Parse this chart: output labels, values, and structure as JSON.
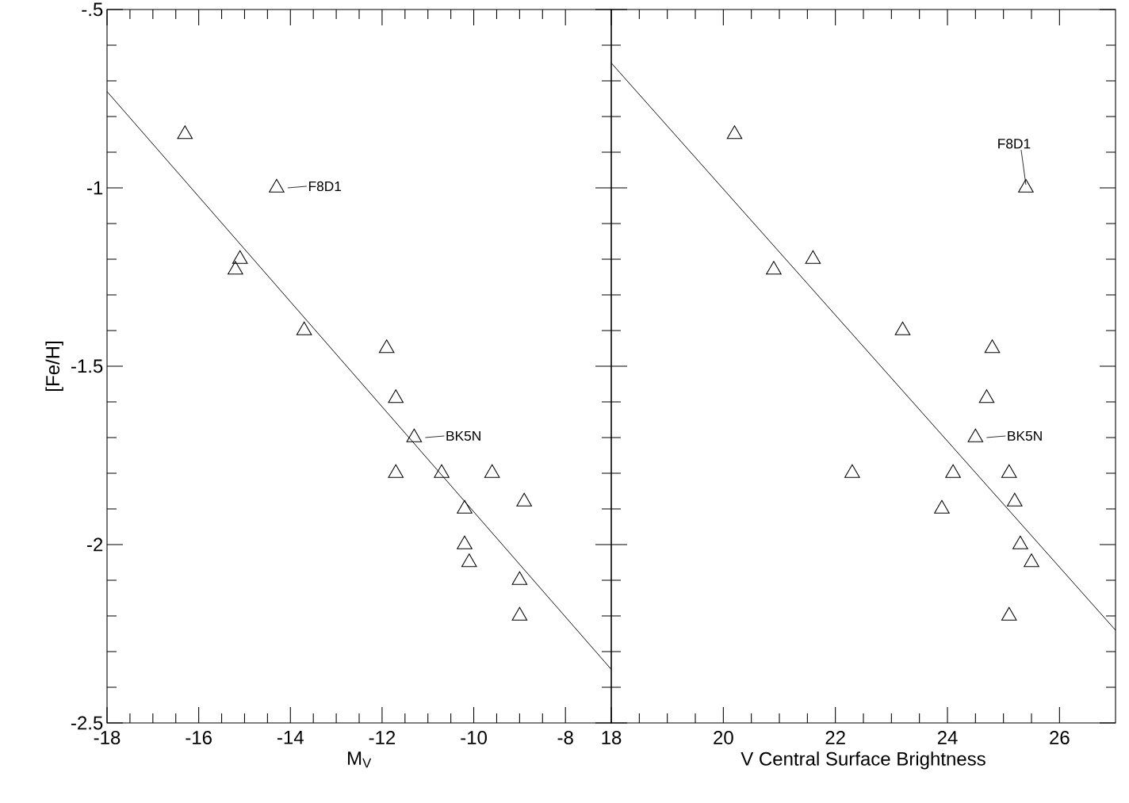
{
  "chart_data": [
    {
      "type": "scatter",
      "xlabel": "M$_{V}$",
      "ylabel": "[Fe/H]",
      "xlim": [
        -18,
        -7
      ],
      "ylim": [
        -2.5,
        -0.5
      ],
      "xticks": [
        -18,
        -16,
        -14,
        -12,
        -10,
        -8
      ],
      "yticks": [
        {
          "value": -2.5,
          "label": "-2.5"
        },
        {
          "value": -2,
          "label": "-2"
        },
        {
          "value": -1.5,
          "label": "-1.5"
        },
        {
          "value": -1,
          "label": "-1"
        },
        {
          "value": -0.5,
          "label": "-.5"
        }
      ],
      "series": [
        {
          "color": "#000000",
          "marker": "triangle",
          "x": [
            -16.3,
            -14.3,
            -15.1,
            -15.2,
            -13.7,
            -11.9,
            -11.7,
            -11.3,
            -11.7,
            -10.7,
            -9.6,
            -10.2,
            -8.9,
            -10.2,
            -10.1,
            -9.0,
            -9.0
          ],
          "values": [
            -0.85,
            -1.0,
            -1.2,
            -1.23,
            -1.4,
            -1.45,
            -1.59,
            -1.7,
            -1.8,
            -1.8,
            -1.8,
            -1.9,
            -1.88,
            -2.0,
            -2.05,
            -2.1,
            -2.2
          ]
        },
        {
          "type": "line",
          "color": "#000000",
          "x": [
            -18,
            -7
          ],
          "values": [
            -0.73,
            -2.35
          ]
        }
      ],
      "annotations": [
        {
          "text": "F8D1",
          "x": -14.3,
          "y": -1.0
        },
        {
          "text": "BK5N",
          "x": -11.3,
          "y": -1.7
        }
      ]
    },
    {
      "type": "scatter",
      "xlabel": "V Central Surface Brightness",
      "tick_labels": "x",
      "xlim": [
        18,
        27
      ],
      "ylim": [
        -2.5,
        -0.5
      ],
      "xticks": [
        18,
        20,
        22,
        24,
        26
      ],
      "yticks": [
        -2.5,
        -2,
        -1.5,
        -1,
        -0.5
      ],
      "series": [
        {
          "color": "#000000",
          "marker": "triangle",
          "x": [
            20.2,
            25.4,
            20.9,
            21.6,
            23.2,
            24.8,
            24.7,
            24.5,
            22.3,
            24.1,
            25.1,
            25.2,
            23.9,
            25.3,
            25.5,
            25.1
          ],
          "values": [
            -0.85,
            -1.0,
            -1.23,
            -1.2,
            -1.4,
            -1.45,
            -1.59,
            -1.7,
            -1.8,
            -1.8,
            -1.8,
            -1.88,
            -1.9,
            -2.0,
            -2.05,
            -2.2
          ]
        },
        {
          "type": "line",
          "color": "#000000",
          "x": [
            18,
            27
          ],
          "values": [
            -0.65,
            -2.24
          ]
        }
      ],
      "annotations": [
        {
          "text": "F8D1",
          "x": 25.4,
          "y": -1.0
        },
        {
          "text": "BK5N",
          "x": 24.5,
          "y": -1.7
        }
      ]
    }
  ]
}
